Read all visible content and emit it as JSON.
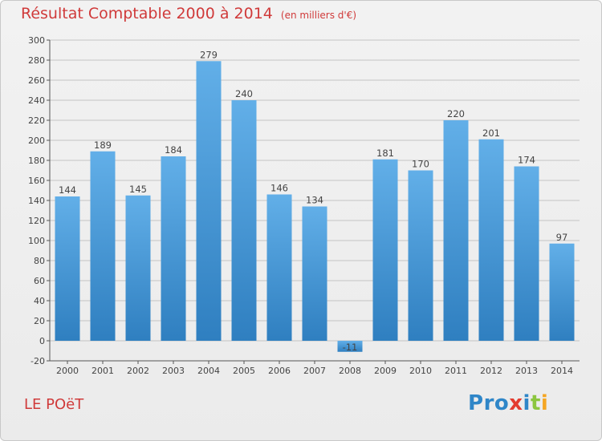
{
  "header": {
    "title": "Résultat Comptable 2000 à 2014",
    "unit": "(en milliers d'€)"
  },
  "location": "LE POëT",
  "logo": {
    "text": "Proxiti",
    "letters": [
      {
        "char": "P",
        "color": "#2f86c8"
      },
      {
        "char": "r",
        "color": "#2f86c8"
      },
      {
        "char": "o",
        "color": "#2f86c8"
      },
      {
        "char": "x",
        "color": "#e33b2f"
      },
      {
        "char": "i",
        "color": "#2f86c8"
      },
      {
        "char": "t",
        "color": "#8cc63f"
      },
      {
        "char": "i",
        "color": "#f5a623"
      }
    ]
  },
  "colors": {
    "bar_top": "#62afe8",
    "bar_bottom": "#2f7fc0",
    "grid": "#c4c4c4",
    "axis": "#555555",
    "text": "#444444",
    "title": "#d03a3a"
  },
  "chart_data": {
    "type": "bar",
    "title": "Résultat Comptable 2000 à 2014",
    "subtitle": "(en milliers d'€)",
    "xlabel": "",
    "ylabel": "",
    "categories": [
      "2000",
      "2001",
      "2002",
      "2003",
      "2004",
      "2005",
      "2006",
      "2007",
      "2008",
      "2009",
      "2010",
      "2011",
      "2012",
      "2013",
      "2014"
    ],
    "values": [
      144,
      189,
      145,
      184,
      279,
      240,
      146,
      134,
      -11,
      181,
      170,
      220,
      201,
      174,
      97
    ],
    "ylim": [
      -20,
      300
    ],
    "yticks": [
      -20,
      0,
      20,
      40,
      60,
      80,
      100,
      120,
      140,
      160,
      180,
      200,
      220,
      240,
      260,
      280,
      300
    ],
    "grid": true,
    "legend": "none"
  }
}
